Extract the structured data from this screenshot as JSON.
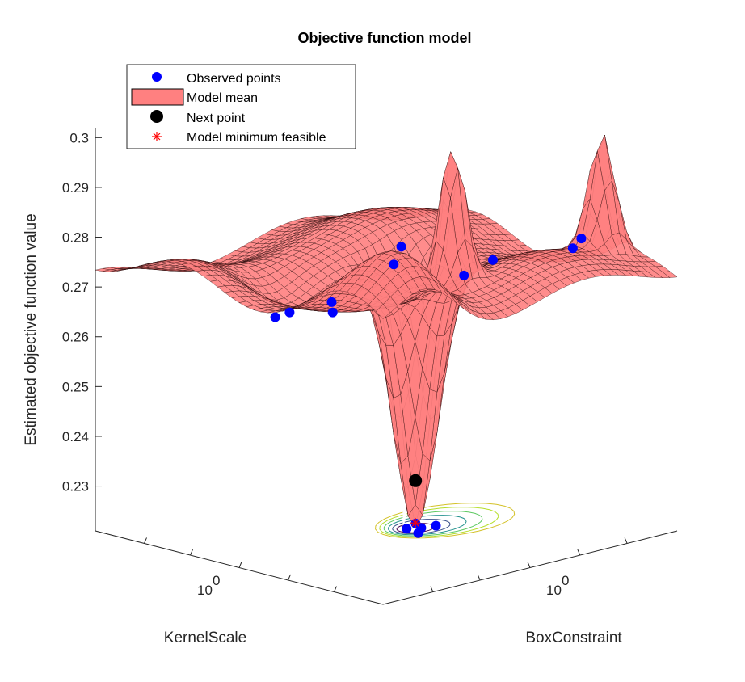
{
  "chart_data": {
    "type": "surface",
    "title": "Objective function model",
    "xlabel": "KernelScale",
    "ylabel": "BoxConstraint",
    "zlabel": "Estimated objective function value",
    "zlim": [
      0.221,
      0.302
    ],
    "z_ticks": [
      "0.23",
      "0.24",
      "0.25",
      "0.26",
      "0.27",
      "0.28",
      "0.29",
      "0.3"
    ],
    "x_ticks": [
      {
        "base": "10",
        "exp": "0"
      }
    ],
    "y_ticks": [
      {
        "base": "10",
        "exp": "0"
      }
    ],
    "legend": {
      "placement": "top-left",
      "entries": [
        "Observed points",
        "Model mean",
        "Next point",
        "Model minimum feasible"
      ]
    },
    "colors": {
      "observed": "#0000ff",
      "surface": "#ff8080",
      "surface_edge": "#1a0000",
      "next_point": "#000000",
      "model_min": "#ff0000"
    },
    "surface_model": {
      "base_value": 0.274,
      "features": [
        {
          "kind": "deep_minimum",
          "u": 0.47,
          "v": 0.57,
          "depth": -0.052
        },
        {
          "kind": "peak",
          "u": 0.22,
          "v": 0.45,
          "height": 0.03
        },
        {
          "kind": "peak",
          "u": 0.18,
          "v": 0.92,
          "height": 0.024
        },
        {
          "kind": "bump",
          "u": 0.1,
          "v": 0.16,
          "height": 0.011
        },
        {
          "kind": "dip",
          "u": 0.62,
          "v": 0.24,
          "height": -0.005
        }
      ]
    },
    "observed_points": [
      {
        "u": 0.1,
        "v": 0.16,
        "z": 0.289
      },
      {
        "u": 0.25,
        "v": 0.07,
        "z": 0.277
      },
      {
        "u": 0.4,
        "v": 0.22,
        "z": 0.2705
      },
      {
        "u": 0.3,
        "v": 0.33,
        "z": 0.28
      },
      {
        "u": 0.56,
        "v": 0.23,
        "z": 0.268
      },
      {
        "u": 0.62,
        "v": 0.24,
        "z": 0.266
      },
      {
        "u": 0.16,
        "v": 0.53,
        "z": 0.28
      },
      {
        "u": 0.24,
        "v": 0.51,
        "z": 0.276
      },
      {
        "u": 0.19,
        "v": 0.86,
        "z": 0.279
      },
      {
        "u": 0.24,
        "v": 0.88,
        "z": 0.276
      },
      {
        "u": 0.43,
        "v": 0.54,
        "z": 0.221
      },
      {
        "u": 0.46,
        "v": 0.58,
        "z": 0.221
      },
      {
        "u": 0.5,
        "v": 0.6,
        "z": 0.221
      },
      {
        "u": 0.48,
        "v": 0.55,
        "z": 0.221
      },
      {
        "u": 0.45,
        "v": 0.62,
        "z": 0.221
      }
    ],
    "next_point": {
      "u": 0.47,
      "v": 0.57,
      "z": 0.2305
    },
    "model_minimum_feasible": {
      "u": 0.47,
      "v": 0.57,
      "z": 0.222
    }
  }
}
